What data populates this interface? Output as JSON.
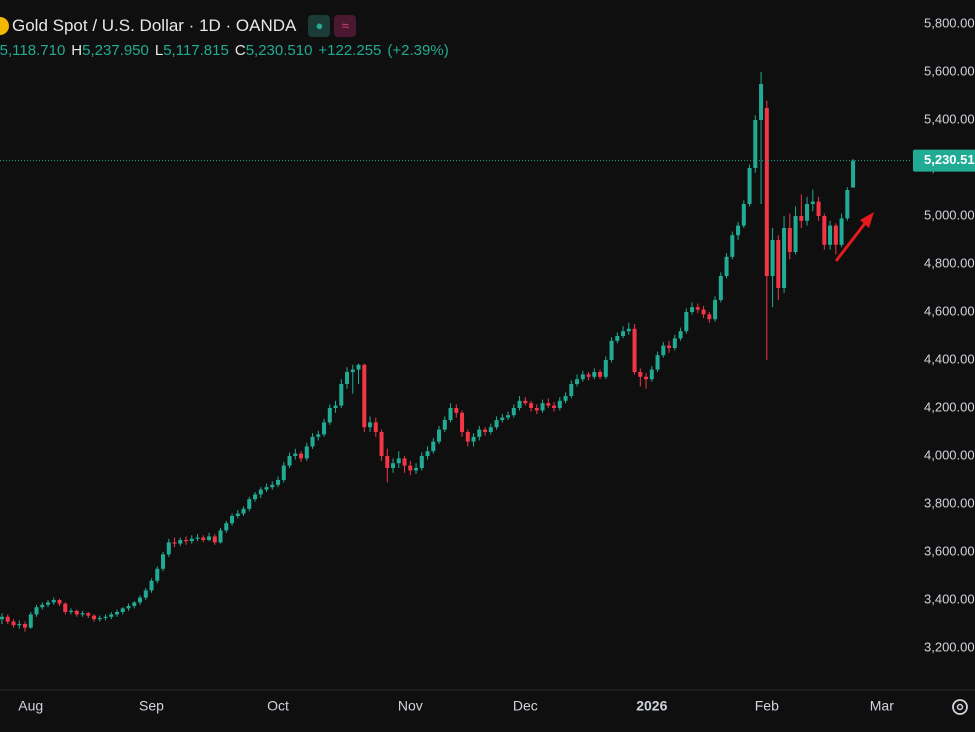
{
  "chart_data": {
    "type": "candlestick",
    "title": "Gold Spot / U.S. Dollar · 1D · OANDA",
    "ohlc_header": [
      {
        "label": "O",
        "value": 5118.71,
        "value_label": "5,118.710"
      },
      {
        "label": "H",
        "value": 5237.95,
        "value_label": "5,237.950"
      },
      {
        "label": "L",
        "value": 5117.815,
        "value_label": "5,117.815"
      },
      {
        "label": "C",
        "value": 5230.51,
        "value_label": "5,230.510"
      }
    ],
    "change": {
      "value": 122.255,
      "label": "+122.255"
    },
    "change_pct": {
      "value": 2.39,
      "label": "(+2.39%)"
    },
    "last_price": {
      "value": 5230.51,
      "label": "5,230.510"
    },
    "up_color": "#22ab94",
    "down_color": "#f23645",
    "grid": false,
    "xlim": [
      -0.35,
      157.9
    ],
    "xticks": [
      {
        "value": 5,
        "label": "Aug"
      },
      {
        "value": 26,
        "label": "Sep"
      },
      {
        "value": 48,
        "label": "Oct"
      },
      {
        "value": 71,
        "label": "Nov"
      },
      {
        "value": 91,
        "label": "Dec"
      },
      {
        "value": 113,
        "label": "2026"
      },
      {
        "value": 133,
        "label": "Feb"
      },
      {
        "value": 153,
        "label": "Mar"
      }
    ],
    "ylim": [
      3025,
      5900
    ],
    "yticks": [
      {
        "value": 3200,
        "label": "3,200.000"
      },
      {
        "value": 3400,
        "label": "3,400.000"
      },
      {
        "value": 3600,
        "label": "3,600.000"
      },
      {
        "value": 3800,
        "label": "3,800.000"
      },
      {
        "value": 4000,
        "label": "4,000.000"
      },
      {
        "value": 4200,
        "label": "4,200.000"
      },
      {
        "value": 4400,
        "label": "4,400.000"
      },
      {
        "value": 4600,
        "label": "4,600.000"
      },
      {
        "value": 4800,
        "label": "4,800.000"
      },
      {
        "value": 5000,
        "label": "5,000.000"
      },
      {
        "value": 5200,
        "label": "5,200.000"
      },
      {
        "value": 5400,
        "label": "5,400.000"
      },
      {
        "value": 5600,
        "label": "5,600.000"
      },
      {
        "value": 5800,
        "label": "5,800.000"
      }
    ],
    "ohlc": [
      [
        3320,
        3345,
        3300,
        3330
      ],
      [
        3330,
        3340,
        3300,
        3310
      ],
      [
        3310,
        3320,
        3285,
        3295
      ],
      [
        3295,
        3315,
        3280,
        3300
      ],
      [
        3300,
        3310,
        3268,
        3285
      ],
      [
        3285,
        3350,
        3280,
        3340
      ],
      [
        3340,
        3380,
        3330,
        3370
      ],
      [
        3370,
        3390,
        3360,
        3380
      ],
      [
        3380,
        3400,
        3370,
        3390
      ],
      [
        3390,
        3410,
        3380,
        3400
      ],
      [
        3400,
        3405,
        3375,
        3385
      ],
      [
        3385,
        3390,
        3340,
        3350
      ],
      [
        3350,
        3365,
        3340,
        3355
      ],
      [
        3355,
        3360,
        3330,
        3340
      ],
      [
        3340,
        3355,
        3330,
        3345
      ],
      [
        3345,
        3350,
        3325,
        3335
      ],
      [
        3335,
        3340,
        3310,
        3320
      ],
      [
        3320,
        3335,
        3310,
        3325
      ],
      [
        3325,
        3340,
        3315,
        3330
      ],
      [
        3330,
        3350,
        3320,
        3340
      ],
      [
        3340,
        3360,
        3330,
        3350
      ],
      [
        3350,
        3370,
        3340,
        3365
      ],
      [
        3365,
        3385,
        3355,
        3375
      ],
      [
        3375,
        3395,
        3365,
        3390
      ],
      [
        3390,
        3420,
        3380,
        3410
      ],
      [
        3410,
        3450,
        3400,
        3440
      ],
      [
        3440,
        3490,
        3430,
        3480
      ],
      [
        3480,
        3540,
        3470,
        3530
      ],
      [
        3530,
        3600,
        3520,
        3590
      ],
      [
        3590,
        3655,
        3580,
        3640
      ],
      [
        3640,
        3660,
        3620,
        3635
      ],
      [
        3635,
        3660,
        3625,
        3650
      ],
      [
        3650,
        3665,
        3630,
        3645
      ],
      [
        3645,
        3670,
        3635,
        3655
      ],
      [
        3655,
        3675,
        3645,
        3660
      ],
      [
        3660,
        3670,
        3640,
        3650
      ],
      [
        3650,
        3680,
        3645,
        3665
      ],
      [
        3665,
        3675,
        3630,
        3640
      ],
      [
        3640,
        3700,
        3635,
        3690
      ],
      [
        3690,
        3730,
        3680,
        3720
      ],
      [
        3720,
        3760,
        3710,
        3750
      ],
      [
        3750,
        3775,
        3740,
        3760
      ],
      [
        3760,
        3790,
        3750,
        3780
      ],
      [
        3780,
        3830,
        3770,
        3820
      ],
      [
        3820,
        3850,
        3810,
        3840
      ],
      [
        3840,
        3870,
        3825,
        3860
      ],
      [
        3860,
        3885,
        3850,
        3870
      ],
      [
        3870,
        3895,
        3860,
        3880
      ],
      [
        3880,
        3915,
        3870,
        3900
      ],
      [
        3900,
        3975,
        3890,
        3960
      ],
      [
        3960,
        4015,
        3950,
        4000
      ],
      [
        4000,
        4030,
        3985,
        4010
      ],
      [
        4010,
        4020,
        3975,
        3990
      ],
      [
        3990,
        4055,
        3980,
        4040
      ],
      [
        4040,
        4095,
        4030,
        4080
      ],
      [
        4080,
        4105,
        4065,
        4090
      ],
      [
        4090,
        4155,
        4080,
        4140
      ],
      [
        4140,
        4215,
        4130,
        4200
      ],
      [
        4200,
        4230,
        4180,
        4210
      ],
      [
        4210,
        4320,
        4200,
        4300
      ],
      [
        4300,
        4370,
        4280,
        4350
      ],
      [
        4350,
        4380,
        4260,
        4360
      ],
      [
        4360,
        4385,
        4300,
        4380
      ],
      [
        4380,
        4385,
        4100,
        4120
      ],
      [
        4120,
        4165,
        4100,
        4140
      ],
      [
        4140,
        4160,
        4080,
        4100
      ],
      [
        4100,
        4110,
        3980,
        4000
      ],
      [
        4000,
        4030,
        3890,
        3950
      ],
      [
        3950,
        3990,
        3930,
        3970
      ],
      [
        3970,
        4020,
        3950,
        3990
      ],
      [
        3990,
        4000,
        3930,
        3960
      ],
      [
        3960,
        3980,
        3920,
        3940
      ],
      [
        3940,
        3970,
        3925,
        3950
      ],
      [
        3950,
        4015,
        3940,
        4000
      ],
      [
        4000,
        4040,
        3985,
        4020
      ],
      [
        4020,
        4075,
        4010,
        4060
      ],
      [
        4060,
        4125,
        4050,
        4110
      ],
      [
        4110,
        4165,
        4100,
        4150
      ],
      [
        4150,
        4220,
        4140,
        4200
      ],
      [
        4200,
        4215,
        4160,
        4180
      ],
      [
        4180,
        4190,
        4080,
        4100
      ],
      [
        4100,
        4110,
        4040,
        4060
      ],
      [
        4060,
        4095,
        4040,
        4080
      ],
      [
        4080,
        4125,
        4065,
        4110
      ],
      [
        4110,
        4120,
        4085,
        4100
      ],
      [
        4100,
        4135,
        4090,
        4120
      ],
      [
        4120,
        4165,
        4110,
        4150
      ],
      [
        4150,
        4175,
        4140,
        4160
      ],
      [
        4160,
        4185,
        4150,
        4170
      ],
      [
        4170,
        4215,
        4160,
        4200
      ],
      [
        4200,
        4250,
        4190,
        4230
      ],
      [
        4230,
        4245,
        4210,
        4220
      ],
      [
        4220,
        4230,
        4185,
        4200
      ],
      [
        4200,
        4215,
        4175,
        4190
      ],
      [
        4190,
        4235,
        4180,
        4220
      ],
      [
        4220,
        4240,
        4200,
        4210
      ],
      [
        4210,
        4225,
        4185,
        4200
      ],
      [
        4200,
        4245,
        4190,
        4230
      ],
      [
        4230,
        4265,
        4220,
        4250
      ],
      [
        4250,
        4315,
        4240,
        4300
      ],
      [
        4300,
        4340,
        4290,
        4320
      ],
      [
        4320,
        4355,
        4310,
        4340
      ],
      [
        4340,
        4350,
        4315,
        4330
      ],
      [
        4330,
        4365,
        4320,
        4350
      ],
      [
        4350,
        4360,
        4320,
        4330
      ],
      [
        4330,
        4415,
        4320,
        4400
      ],
      [
        4400,
        4495,
        4390,
        4480
      ],
      [
        4480,
        4515,
        4470,
        4500
      ],
      [
        4500,
        4540,
        4490,
        4520
      ],
      [
        4520,
        4555,
        4505,
        4530
      ],
      [
        4530,
        4550,
        4340,
        4350
      ],
      [
        4350,
        4365,
        4290,
        4330
      ],
      [
        4330,
        4345,
        4280,
        4320
      ],
      [
        4320,
        4375,
        4310,
        4360
      ],
      [
        4360,
        4435,
        4350,
        4420
      ],
      [
        4420,
        4475,
        4410,
        4460
      ],
      [
        4460,
        4480,
        4430,
        4450
      ],
      [
        4450,
        4505,
        4440,
        4490
      ],
      [
        4490,
        4535,
        4480,
        4520
      ],
      [
        4520,
        4615,
        4510,
        4600
      ],
      [
        4600,
        4640,
        4590,
        4620
      ],
      [
        4620,
        4635,
        4595,
        4610
      ],
      [
        4610,
        4625,
        4575,
        4590
      ],
      [
        4590,
        4600,
        4555,
        4570
      ],
      [
        4570,
        4665,
        4560,
        4650
      ],
      [
        4650,
        4765,
        4640,
        4750
      ],
      [
        4750,
        4845,
        4740,
        4830
      ],
      [
        4830,
        4935,
        4820,
        4920
      ],
      [
        4920,
        4975,
        4900,
        4960
      ],
      [
        4960,
        5065,
        4950,
        5050
      ],
      [
        5050,
        5215,
        5040,
        5200
      ],
      [
        5200,
        5420,
        5180,
        5400
      ],
      [
        5400,
        5600,
        5050,
        5550
      ],
      [
        5450,
        5480,
        4400,
        4750
      ],
      [
        4750,
        4950,
        4620,
        4900
      ],
      [
        4900,
        4920,
        4650,
        4700
      ],
      [
        4700,
        5000,
        4680,
        4950
      ],
      [
        4950,
        5010,
        4820,
        4850
      ],
      [
        4850,
        5040,
        4840,
        5000
      ],
      [
        5000,
        5090,
        4950,
        4980
      ],
      [
        4980,
        5080,
        4960,
        5050
      ],
      [
        5050,
        5110,
        5020,
        5060
      ],
      [
        5060,
        5080,
        4980,
        5000
      ],
      [
        5000,
        5010,
        4860,
        4880
      ],
      [
        4880,
        4980,
        4860,
        4960
      ],
      [
        4960,
        4970,
        4840,
        4880
      ],
      [
        4880,
        5010,
        4870,
        4990
      ],
      [
        4990,
        5120,
        4980,
        5108.255
      ],
      [
        5118.71,
        5237.95,
        5117.815,
        5230.51
      ]
    ]
  }
}
